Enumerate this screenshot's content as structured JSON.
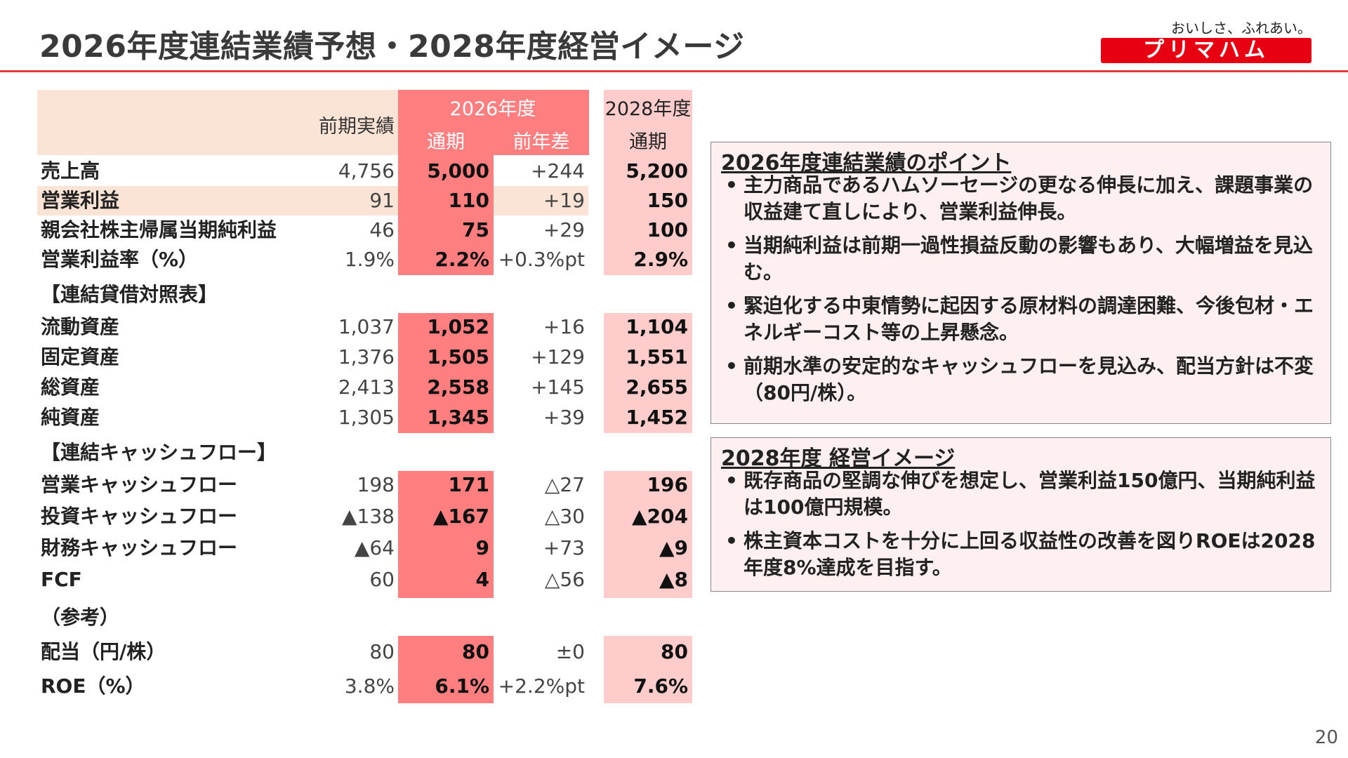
{
  "title": "2026年度連結業績予想・2028年度経営イメージ",
  "logo": {
    "tagline": "おいしさ、ふれあい。",
    "brand": "プリマハム"
  },
  "table": {
    "header": {
      "prev": "前期実績",
      "fy2026": "2026年度",
      "full_year": "通期",
      "yoy": "前年差",
      "fy2028": "2028年度",
      "full_year_2028": "通期"
    },
    "rows": [
      {
        "label": "売上高",
        "prev": "4,756",
        "cur": "5,000",
        "diff": "+244",
        "fut": "5,200"
      },
      {
        "label": "営業利益",
        "prev": "91",
        "cur": "110",
        "diff": "+19",
        "fut": "150"
      },
      {
        "label": "親会社株主帰属当期純利益",
        "prev": "46",
        "cur": "75",
        "diff": "+29",
        "fut": "100"
      },
      {
        "label": "営業利益率（%）",
        "prev": "1.9%",
        "cur": "2.2%",
        "diff": "+0.3%pt",
        "fut": "2.9%"
      },
      {
        "section": "【連結貸借対照表】"
      },
      {
        "label": "流動資産",
        "prev": "1,037",
        "cur": "1,052",
        "diff": "+16",
        "fut": "1,104"
      },
      {
        "label": "固定資産",
        "prev": "1,376",
        "cur": "1,505",
        "diff": "+129",
        "fut": "1,551"
      },
      {
        "label": "総資産",
        "prev": "2,413",
        "cur": "2,558",
        "diff": "+145",
        "fut": "2,655"
      },
      {
        "label": "純資産",
        "prev": "1,305",
        "cur": "1,345",
        "diff": "+39",
        "fut": "1,452"
      },
      {
        "section": "【連結キャッシュフロー】"
      },
      {
        "label": "営業キャッシュフロー",
        "prev": "198",
        "cur": "171",
        "diff": "△27",
        "fut": "196"
      },
      {
        "label": "投資キャッシュフロー",
        "prev": "▲138",
        "cur": "▲167",
        "diff": "△30",
        "fut": "▲204"
      },
      {
        "label": "財務キャッシュフロー",
        "prev": "▲64",
        "cur": "9",
        "diff": "+73",
        "fut": "▲9"
      },
      {
        "label": "FCF",
        "prev": "60",
        "cur": "4",
        "diff": "△56",
        "fut": "▲8"
      },
      {
        "section": "（参考）"
      },
      {
        "label": "配当（円/株）",
        "prev": "80",
        "cur": "80",
        "diff": "±0",
        "fut": "80"
      },
      {
        "label": "ROE（%）",
        "prev": "3.8%",
        "cur": "6.1%",
        "diff": "+2.2%pt",
        "fut": "7.6%"
      }
    ]
  },
  "box1": {
    "heading": "2026年度連結業績のポイント",
    "bullets": [
      "主力商品であるハムソーセージの更なる伸長に加え、課題事業の収益建て直しにより、営業利益伸長。",
      "当期純利益は前期一過性損益反動の影響もあり、大幅増益を見込む。",
      "緊迫化する中東情勢に起因する原材料の調達困難、今後包材・エネルギーコスト等の上昇懸念。",
      "前期水準の安定的なキャッシュフローを見込み、配当方針は不変（80円/株）。"
    ]
  },
  "box2": {
    "heading": "2028年度 経営イメージ",
    "bullets": [
      "既存商品の堅調な伸びを想定し、営業利益150億円、当期純利益は100億円規模。",
      "株主資本コストを十分に上回る収益性の改善を図りROEは2028年度8%達成を目指す。"
    ]
  },
  "page_number": "20",
  "colors": {
    "accent": "#e03a3a",
    "fy2026": "#ff7f80",
    "fy2028": "#ffcccc",
    "header_band": "#fbe4d5",
    "box_bg": "#fef0f0"
  }
}
